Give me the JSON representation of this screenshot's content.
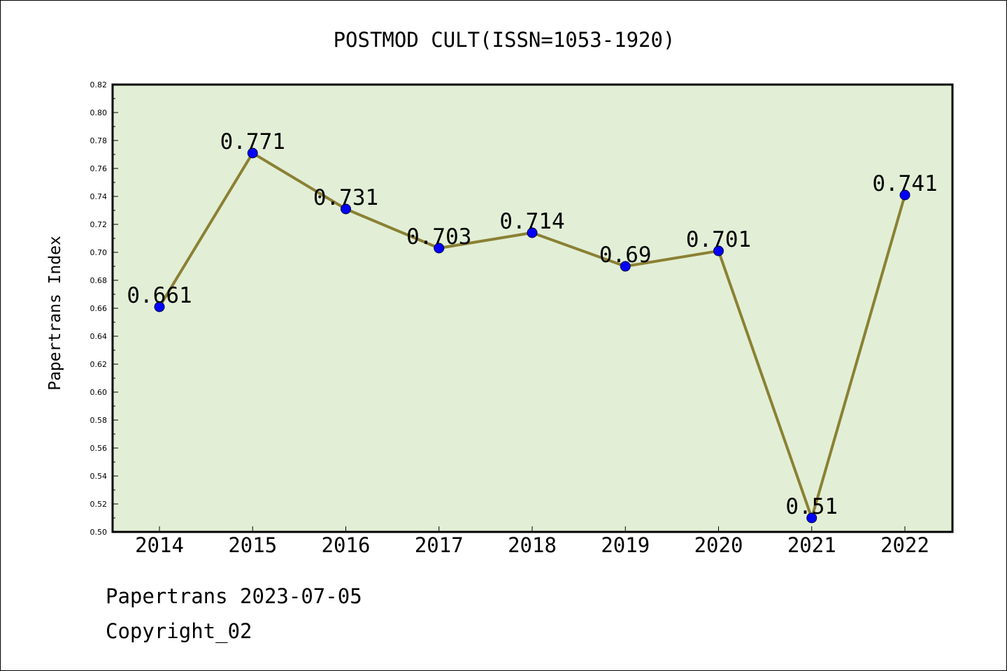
{
  "chart_data": {
    "type": "line",
    "title": "POSTMOD CULT(ISSN=1053-1920)",
    "xlabel": "",
    "ylabel": "Papertrans Index",
    "categories": [
      "2014",
      "2015",
      "2016",
      "2017",
      "2018",
      "2019",
      "2020",
      "2021",
      "2022"
    ],
    "series": [
      {
        "values": [
          0.661,
          0.771,
          0.731,
          0.703,
          0.714,
          0.69,
          0.701,
          0.51,
          0.741
        ],
        "data_labels": [
          "0.661",
          "0.771",
          "0.731",
          "0.703",
          "0.714",
          "0.69",
          "0.701",
          "0.51",
          "0.741"
        ]
      }
    ],
    "ylim": [
      0.5,
      0.82
    ],
    "yticks": [
      "0.50",
      "0.52",
      "0.54",
      "0.56",
      "0.58",
      "0.60",
      "0.62",
      "0.64",
      "0.66",
      "0.68",
      "0.70",
      "0.72",
      "0.74",
      "0.76",
      "0.78",
      "0.80",
      "0.82"
    ],
    "grid": false,
    "legend": "none",
    "colors": {
      "plot_background": "#e2efd6",
      "line": "#8b8034",
      "marker": "#0000ff"
    }
  },
  "footer": {
    "line1": "Papertrans 2023-07-05",
    "line2": "Copyright_02"
  }
}
